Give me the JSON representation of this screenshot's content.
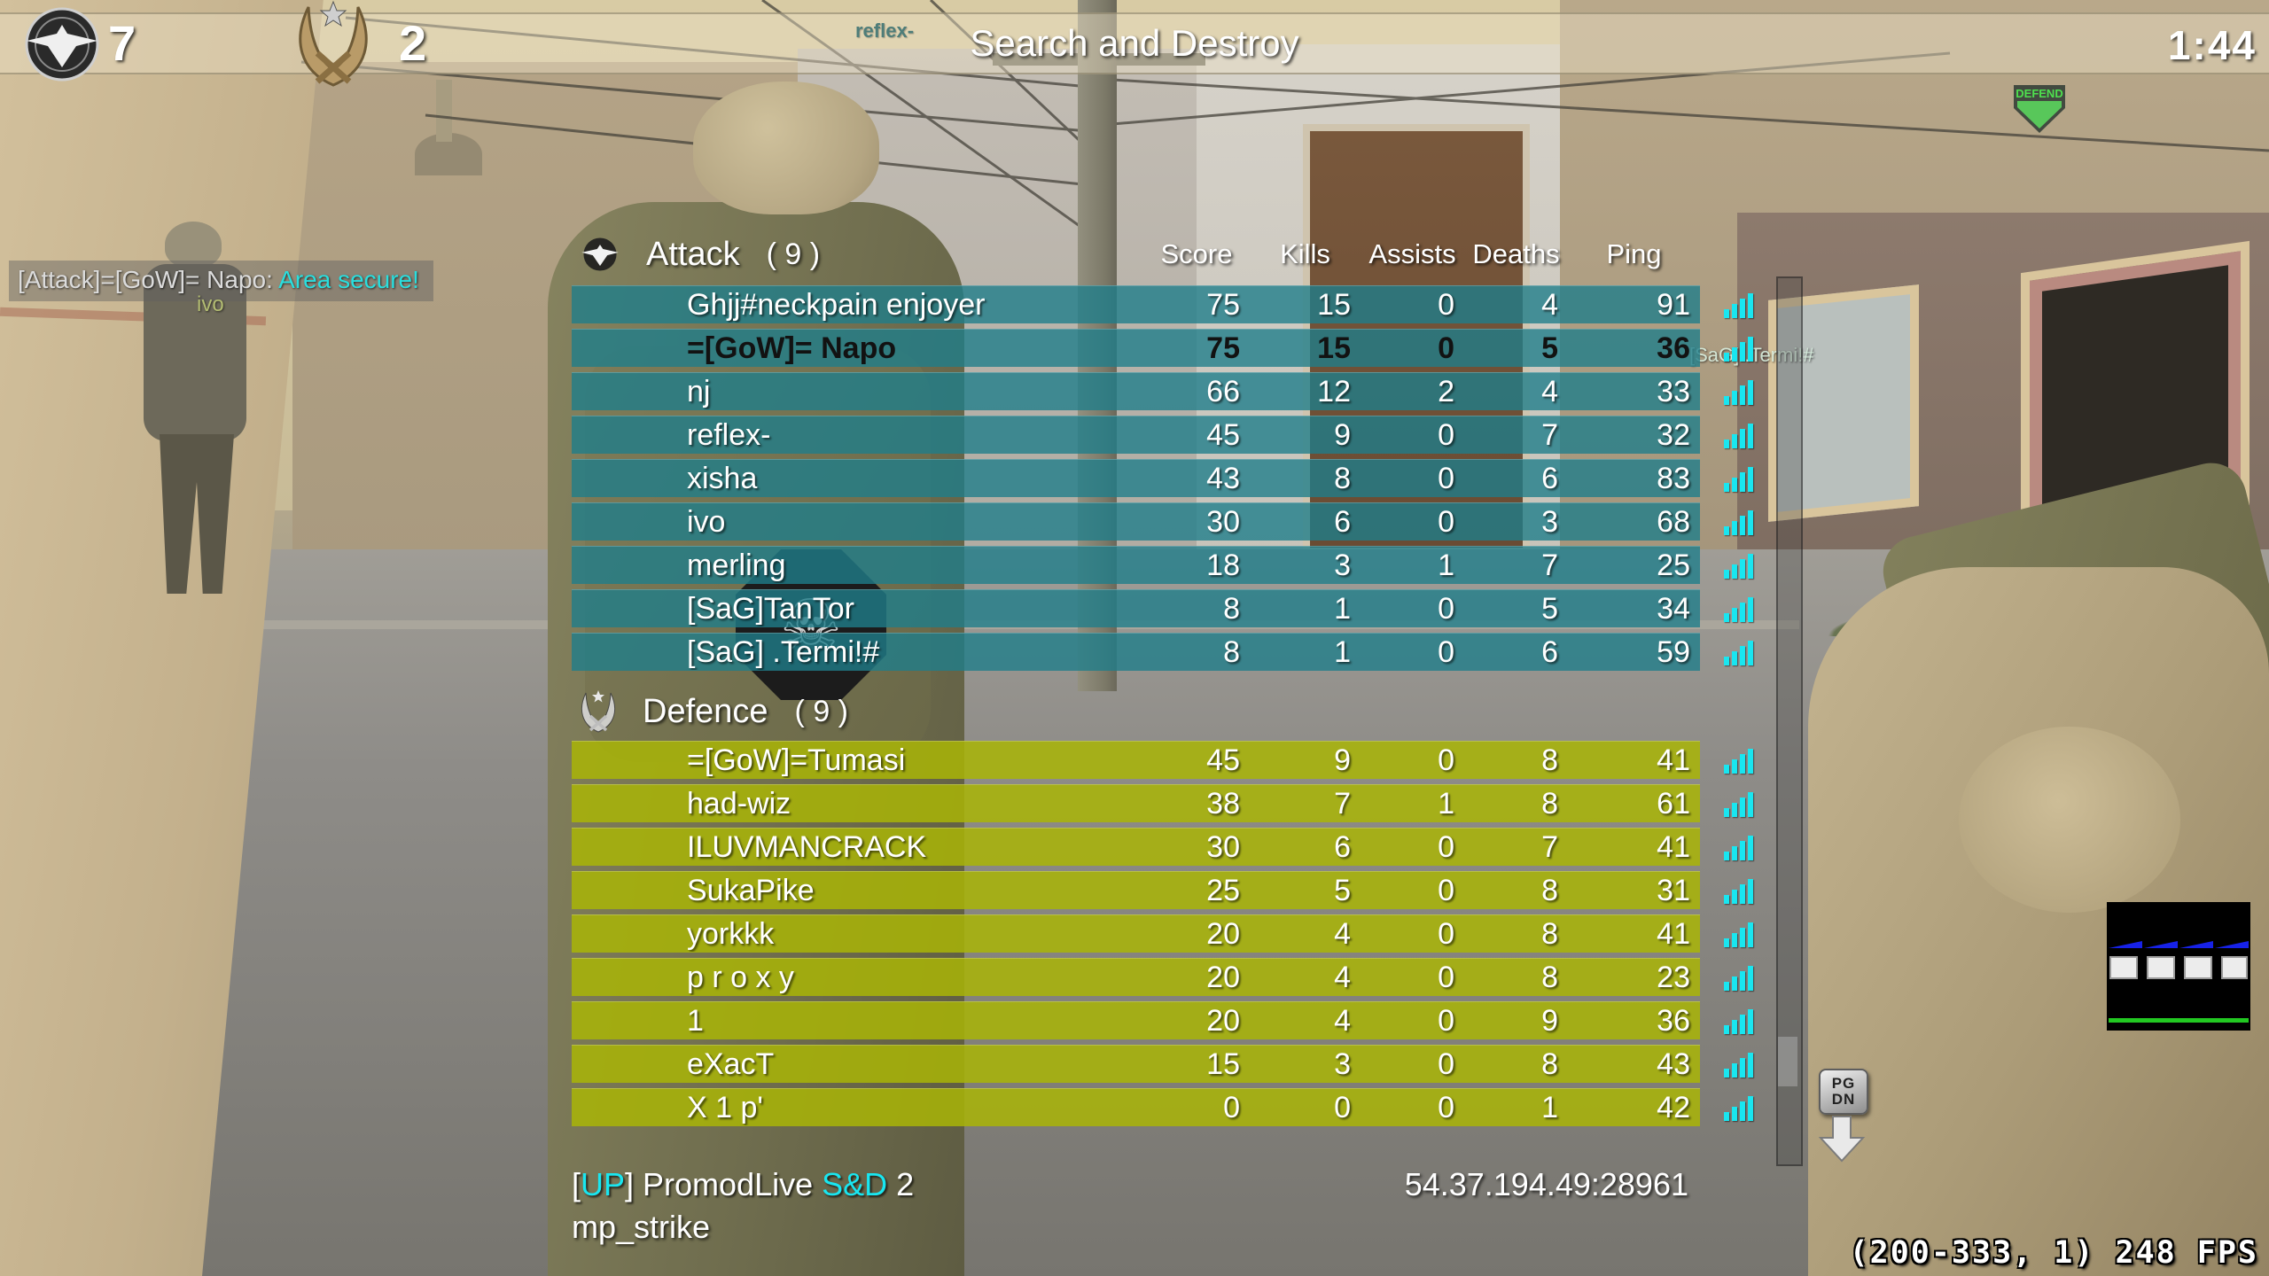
{
  "colors": {
    "attack_row": "#1f7e8ac9",
    "defence_row": "#a9b506d9",
    "cyan": "#19e6f0",
    "chat_cyan": "#2adede",
    "defend_green": "#4fdf57",
    "lag_blue": "#1722e8",
    "lag_green": "#22c822"
  },
  "hud": {
    "top_bar": {
      "attack_score": "7",
      "defence_score": "2",
      "gametype": "Search and Destroy",
      "timer": "1:44"
    },
    "killfeed": "reflex-",
    "chat": {
      "name_part": "[Attack]=[GoW]= Napo: ",
      "message": "Area secure!"
    },
    "nametags": {
      "ivo": "ivo",
      "termi": "[SaG] .Termi!#"
    },
    "objective_marker": "DEFEND",
    "pgdn_key": {
      "line1": "PG",
      "line2": "DN"
    },
    "fps_counter": "(200-333, 1) 248 FPS"
  },
  "scoreboard": {
    "columns": [
      "Score",
      "Kills",
      "Assists",
      "Deaths",
      "Ping"
    ],
    "teams": [
      {
        "name": "Attack",
        "count": "( 9 )",
        "players": [
          {
            "name": "Ghjj#neckpain enjoyer",
            "score": 75,
            "kills": 15,
            "assists": 0,
            "deaths": 4,
            "ping": 91,
            "self": false
          },
          {
            "name": "=[GoW]= Napo",
            "score": 75,
            "kills": 15,
            "assists": 0,
            "deaths": 5,
            "ping": 36,
            "self": true
          },
          {
            "name": "nj",
            "score": 66,
            "kills": 12,
            "assists": 2,
            "deaths": 4,
            "ping": 33,
            "self": false
          },
          {
            "name": "reflex-",
            "score": 45,
            "kills": 9,
            "assists": 0,
            "deaths": 7,
            "ping": 32,
            "self": false
          },
          {
            "name": "xisha",
            "score": 43,
            "kills": 8,
            "assists": 0,
            "deaths": 6,
            "ping": 83,
            "self": false
          },
          {
            "name": "ivo",
            "score": 30,
            "kills": 6,
            "assists": 0,
            "deaths": 3,
            "ping": 68,
            "self": false
          },
          {
            "name": "merling",
            "score": 18,
            "kills": 3,
            "assists": 1,
            "deaths": 7,
            "ping": 25,
            "self": false
          },
          {
            "name": "[SaG]TanTor",
            "score": 8,
            "kills": 1,
            "assists": 0,
            "deaths": 5,
            "ping": 34,
            "self": false
          },
          {
            "name": "[SaG] .Termi!#",
            "score": 8,
            "kills": 1,
            "assists": 0,
            "deaths": 6,
            "ping": 59,
            "self": false
          }
        ]
      },
      {
        "name": "Defence",
        "count": "( 9 )",
        "players": [
          {
            "name": "=[GoW]=Tumasi",
            "score": 45,
            "kills": 9,
            "assists": 0,
            "deaths": 8,
            "ping": 41,
            "self": false
          },
          {
            "name": "had-wiz",
            "score": 38,
            "kills": 7,
            "assists": 1,
            "deaths": 8,
            "ping": 61,
            "self": false
          },
          {
            "name": "ILUVMANCRACK",
            "score": 30,
            "kills": 6,
            "assists": 0,
            "deaths": 7,
            "ping": 41,
            "self": false
          },
          {
            "name": "SukaPike",
            "score": 25,
            "kills": 5,
            "assists": 0,
            "deaths": 8,
            "ping": 31,
            "self": false
          },
          {
            "name": "yorkkk",
            "score": 20,
            "kills": 4,
            "assists": 0,
            "deaths": 8,
            "ping": 41,
            "self": false
          },
          {
            "name": "p r o x y",
            "score": 20,
            "kills": 4,
            "assists": 0,
            "deaths": 8,
            "ping": 23,
            "self": false
          },
          {
            "name": "1",
            "score": 20,
            "kills": 4,
            "assists": 0,
            "deaths": 9,
            "ping": 36,
            "self": false
          },
          {
            "name": "eXacT",
            "score": 15,
            "kills": 3,
            "assists": 0,
            "deaths": 8,
            "ping": 43,
            "self": false
          },
          {
            "name": "X 1 p'",
            "score": 0,
            "kills": 0,
            "assists": 0,
            "deaths": 1,
            "ping": 42,
            "self": false
          }
        ]
      }
    ]
  },
  "footer": {
    "server_line": [
      {
        "text": "[",
        "color": "white"
      },
      {
        "text": "UP",
        "color": "cyan"
      },
      {
        "text": "] PromodLive ",
        "color": "white"
      },
      {
        "text": "S&D",
        "color": "cyan"
      },
      {
        "text": " 2",
        "color": "white"
      }
    ],
    "map_name": "mp_strike",
    "server_ip": "54.37.194.49:28961"
  }
}
